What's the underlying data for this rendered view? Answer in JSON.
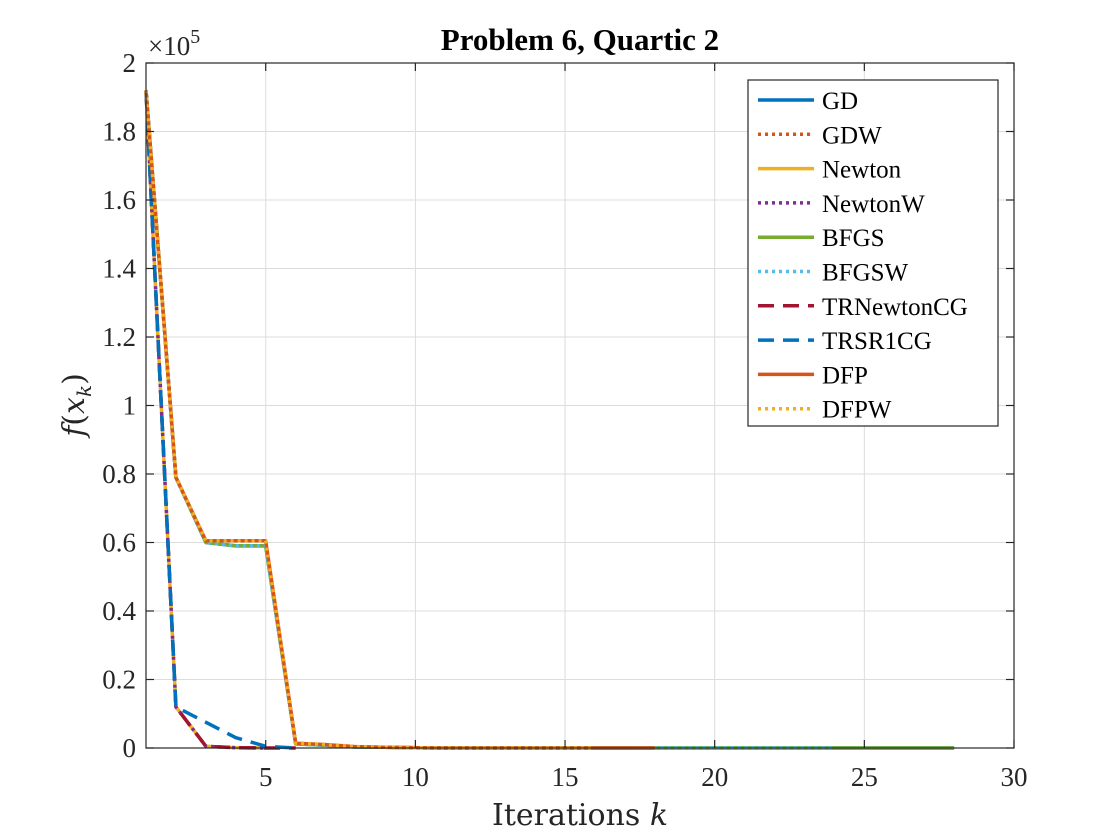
{
  "chart_data": {
    "type": "line",
    "title": "Problem 6, Quartic 2",
    "xlabel": "Iterations k",
    "ylabel": "f(x_k)",
    "xlim": [
      1,
      30
    ],
    "ylim": [
      0,
      2
    ],
    "y_exponent": "×10",
    "y_exponent_power": "5",
    "xticks": [
      5,
      10,
      15,
      20,
      25,
      30
    ],
    "yticks": [
      0,
      0.2,
      0.4,
      0.6,
      0.8,
      1,
      1.2,
      1.4,
      1.6,
      1.8,
      2
    ],
    "ytick_labels": [
      "0",
      "0.2",
      "0.4",
      "0.6",
      "0.8",
      "1",
      "1.2",
      "1.4",
      "1.6",
      "1.8",
      "2"
    ],
    "grid": true,
    "legend_position": "top-right",
    "series": [
      {
        "name": "GD",
        "color": "#0072BD",
        "style": "solid",
        "x": [
          1,
          2,
          3,
          4,
          5,
          6,
          7,
          8,
          9,
          10,
          11,
          12,
          13,
          14,
          15,
          16,
          17,
          18,
          19,
          20,
          21,
          22,
          23,
          24,
          25,
          26,
          27,
          28
        ],
        "y": [
          1.92,
          0.79,
          0.6,
          0.59,
          0.59,
          0.012,
          0.008,
          0.003,
          0.002,
          0.001,
          0,
          0,
          0,
          0,
          0,
          0,
          0,
          0,
          0,
          0,
          0,
          0,
          0,
          0,
          0,
          0,
          0,
          0
        ]
      },
      {
        "name": "GDW",
        "color": "#D95319",
        "style": "dotted",
        "x": [
          1,
          2,
          3,
          4,
          5,
          6,
          7,
          8,
          9,
          10,
          11,
          12,
          13,
          14,
          15,
          16
        ],
        "y": [
          1.92,
          0.79,
          0.605,
          0.605,
          0.605,
          0.014,
          0.01,
          0.004,
          0.002,
          0.001,
          0,
          0,
          0,
          0,
          0,
          0
        ]
      },
      {
        "name": "Newton",
        "color": "#EDB120",
        "style": "solid",
        "x": [
          1,
          2,
          3,
          4,
          5
        ],
        "y": [
          1.92,
          0.12,
          0.005,
          0.001,
          0
        ]
      },
      {
        "name": "NewtonW",
        "color": "#7E2F8E",
        "style": "dotted",
        "x": [
          1,
          2,
          3,
          4,
          5
        ],
        "y": [
          1.92,
          0.12,
          0.005,
          0.001,
          0
        ]
      },
      {
        "name": "BFGS",
        "color": "#77AC30",
        "style": "solid",
        "x": [
          1,
          2,
          3,
          4,
          5,
          6,
          7,
          8,
          9,
          10,
          11,
          12,
          13,
          14,
          15,
          16,
          17,
          18,
          19,
          20,
          21,
          22,
          23,
          24,
          25,
          26,
          27,
          28
        ],
        "y": [
          1.92,
          0.79,
          0.6,
          0.59,
          0.59,
          0.012,
          0.008,
          0.003,
          0.002,
          0.001,
          0,
          0,
          0,
          0,
          0,
          0,
          0,
          0,
          0,
          0,
          0,
          0,
          0,
          0,
          0,
          0,
          0,
          0
        ]
      },
      {
        "name": "BFGSW",
        "color": "#4DBEEE",
        "style": "dotted",
        "x": [
          1,
          2,
          3,
          4,
          5,
          6,
          7,
          8,
          9,
          10,
          11,
          12,
          13,
          14,
          15,
          16,
          17,
          18,
          19,
          20,
          21,
          22,
          23,
          24
        ],
        "y": [
          1.92,
          0.79,
          0.6,
          0.59,
          0.59,
          0.012,
          0.008,
          0.003,
          0.002,
          0.001,
          0,
          0,
          0,
          0,
          0,
          0,
          0,
          0,
          0,
          0,
          0,
          0,
          0,
          0
        ]
      },
      {
        "name": "TRNewtonCG",
        "color": "#A2142F",
        "style": "dashed",
        "x": [
          1,
          2,
          3,
          4,
          5,
          6
        ],
        "y": [
          1.92,
          0.12,
          0.005,
          0.001,
          0,
          0
        ]
      },
      {
        "name": "TRSR1CG",
        "color": "#0072BD",
        "style": "dashed",
        "x": [
          1,
          2,
          3,
          4,
          5,
          6
        ],
        "y": [
          1.92,
          0.12,
          0.075,
          0.03,
          0.005,
          0
        ]
      },
      {
        "name": "DFP",
        "color": "#D95319",
        "style": "solid",
        "x": [
          1,
          2,
          3,
          4,
          5,
          6,
          7,
          8,
          9,
          10,
          11,
          12,
          13,
          14,
          15,
          16,
          17,
          18
        ],
        "y": [
          1.92,
          0.79,
          0.605,
          0.605,
          0.605,
          0.014,
          0.01,
          0.004,
          0.002,
          0.001,
          0,
          0,
          0,
          0,
          0,
          0,
          0,
          0
        ]
      },
      {
        "name": "DFPW",
        "color": "#EDB120",
        "style": "dotted",
        "x": [
          1,
          2,
          3,
          4,
          5,
          6,
          7,
          8,
          9,
          10,
          11,
          12,
          13,
          14,
          15,
          16
        ],
        "y": [
          1.92,
          0.79,
          0.605,
          0.605,
          0.605,
          0.014,
          0.01,
          0.004,
          0.002,
          0.001,
          0,
          0,
          0,
          0,
          0,
          0
        ]
      }
    ]
  }
}
